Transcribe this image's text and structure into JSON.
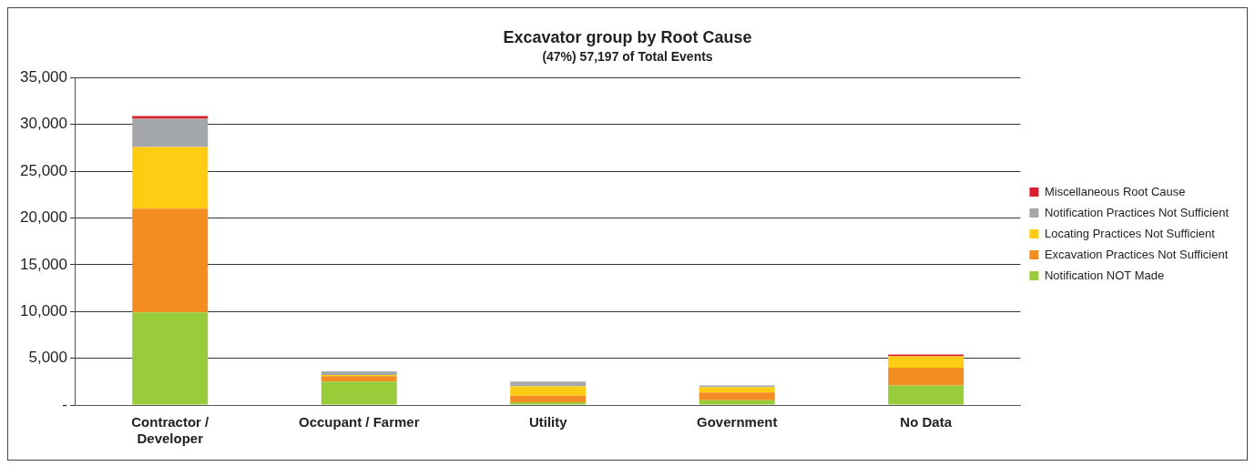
{
  "chart_data": {
    "type": "bar",
    "title": "Excavator group by Root Cause",
    "subtitle": "(47%) 57,197 of Total Events",
    "categories": [
      "Contractor / Developer",
      "Occupant / Farmer",
      "Utility",
      "Government",
      "No Data"
    ],
    "stacked": true,
    "grid": "y",
    "legend": "right",
    "ylim": [
      0,
      35000
    ],
    "yticks": [
      {
        "value": 0,
        "label": "-"
      },
      {
        "value": 5000,
        "label": "5,000"
      },
      {
        "value": 10000,
        "label": "10,000"
      },
      {
        "value": 15000,
        "label": "15,000"
      },
      {
        "value": 20000,
        "label": "20,000"
      },
      {
        "value": 25000,
        "label": "25,000"
      },
      {
        "value": 30000,
        "label": "30,000"
      },
      {
        "value": 35000,
        "label": "35,000"
      }
    ],
    "series": [
      {
        "name": "Notification NOT Made",
        "color": "#99cc3a",
        "values": [
          9900,
          2500,
          300,
          500,
          2100
        ]
      },
      {
        "name": "Excavation Practices Not Sufficient",
        "color": "#f38d22",
        "values": [
          11100,
          600,
          700,
          850,
          1900
        ]
      },
      {
        "name": "Locating Practices Not Sufficient",
        "color": "#fecc12",
        "values": [
          6600,
          100,
          1000,
          550,
          1200
        ]
      },
      {
        "name": "Notification Practices Not Sufficient",
        "color": "#a5a8ab",
        "values": [
          3000,
          400,
          500,
          200,
          0
        ]
      },
      {
        "name": "Miscellaneous Root Cause",
        "color": "#dd1f2d",
        "values": [
          300,
          0,
          0,
          0,
          200
        ]
      }
    ]
  }
}
